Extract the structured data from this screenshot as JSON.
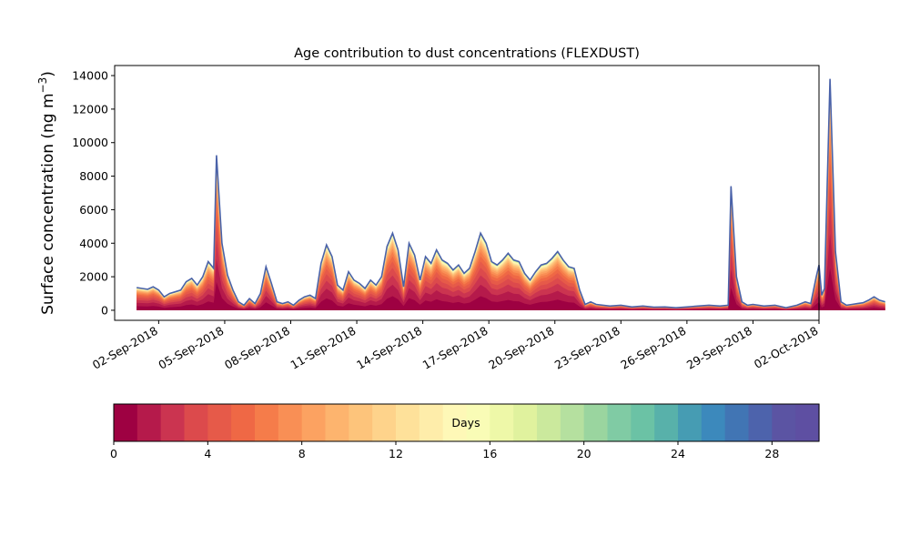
{
  "chart_data": {
    "type": "area",
    "title": "Age contribution to dust concentrations (FLEXDUST)",
    "ylabel": "Surface concentration (ng m",
    "ylabel_sup": "−3",
    "ylabel_close": ")",
    "ylim": [
      -600,
      14600
    ],
    "y_ticks": [
      0,
      2000,
      4000,
      6000,
      8000,
      10000,
      12000,
      14000
    ],
    "x_start": "2018-08-31",
    "x_end": "2018-10-02",
    "x_ticks": [
      "02-Sep-2018",
      "05-Sep-2018",
      "08-Sep-2018",
      "11-Sep-2018",
      "14-Sep-2018",
      "17-Sep-2018",
      "20-Sep-2018",
      "23-Sep-2018",
      "26-Sep-2018",
      "29-Sep-2018",
      "02-Oct-2018"
    ],
    "series": [
      {
        "values": [
          [
            "2018-09-01 00:00",
            1350
          ],
          [
            "2018-09-01 06:00",
            1300
          ],
          [
            "2018-09-01 12:00",
            1250
          ],
          [
            "2018-09-01 18:00",
            1400
          ],
          [
            "2018-09-02 00:00",
            1200
          ],
          [
            "2018-09-02 06:00",
            800
          ],
          [
            "2018-09-02 12:00",
            1000
          ],
          [
            "2018-09-02 18:00",
            1100
          ],
          [
            "2018-09-03 00:00",
            1200
          ],
          [
            "2018-09-03 06:00",
            1700
          ],
          [
            "2018-09-03 12:00",
            1900
          ],
          [
            "2018-09-03 18:00",
            1500
          ],
          [
            "2018-09-04 00:00",
            2000
          ],
          [
            "2018-09-04 06:00",
            2900
          ],
          [
            "2018-09-04 12:00",
            2500
          ],
          [
            "2018-09-04 15:00",
            9250
          ],
          [
            "2018-09-04 21:00",
            4000
          ],
          [
            "2018-09-05 03:00",
            2100
          ],
          [
            "2018-09-05 09:00",
            1200
          ],
          [
            "2018-09-05 15:00",
            500
          ],
          [
            "2018-09-05 21:00",
            300
          ],
          [
            "2018-09-06 03:00",
            700
          ],
          [
            "2018-09-06 09:00",
            400
          ],
          [
            "2018-09-06 15:00",
            1000
          ],
          [
            "2018-09-06 21:00",
            2600
          ],
          [
            "2018-09-07 03:00",
            1600
          ],
          [
            "2018-09-07 09:00",
            500
          ],
          [
            "2018-09-07 15:00",
            400
          ],
          [
            "2018-09-07 21:00",
            500
          ],
          [
            "2018-09-08 03:00",
            300
          ],
          [
            "2018-09-08 09:00",
            600
          ],
          [
            "2018-09-08 15:00",
            800
          ],
          [
            "2018-09-08 21:00",
            900
          ],
          [
            "2018-09-09 03:00",
            700
          ],
          [
            "2018-09-09 09:00",
            2800
          ],
          [
            "2018-09-09 15:00",
            3900
          ],
          [
            "2018-09-09 21:00",
            3200
          ],
          [
            "2018-09-10 03:00",
            1500
          ],
          [
            "2018-09-10 09:00",
            1200
          ],
          [
            "2018-09-10 15:00",
            2300
          ],
          [
            "2018-09-10 21:00",
            1800
          ],
          [
            "2018-09-11 03:00",
            1600
          ],
          [
            "2018-09-11 09:00",
            1300
          ],
          [
            "2018-09-11 15:00",
            1800
          ],
          [
            "2018-09-11 21:00",
            1500
          ],
          [
            "2018-09-12 03:00",
            2000
          ],
          [
            "2018-09-12 09:00",
            3800
          ],
          [
            "2018-09-12 15:00",
            4600
          ],
          [
            "2018-09-12 21:00",
            3600
          ],
          [
            "2018-09-13 03:00",
            1400
          ],
          [
            "2018-09-13 09:00",
            4000
          ],
          [
            "2018-09-13 15:00",
            3300
          ],
          [
            "2018-09-13 21:00",
            1800
          ],
          [
            "2018-09-14 03:00",
            3200
          ],
          [
            "2018-09-14 09:00",
            2800
          ],
          [
            "2018-09-14 15:00",
            3600
          ],
          [
            "2018-09-14 21:00",
            3000
          ],
          [
            "2018-09-15 03:00",
            2800
          ],
          [
            "2018-09-15 09:00",
            2400
          ],
          [
            "2018-09-15 15:00",
            2700
          ],
          [
            "2018-09-15 21:00",
            2200
          ],
          [
            "2018-09-16 03:00",
            2500
          ],
          [
            "2018-09-16 09:00",
            3500
          ],
          [
            "2018-09-16 15:00",
            4600
          ],
          [
            "2018-09-16 21:00",
            4000
          ],
          [
            "2018-09-17 03:00",
            2900
          ],
          [
            "2018-09-17 09:00",
            2700
          ],
          [
            "2018-09-17 15:00",
            3000
          ],
          [
            "2018-09-17 21:00",
            3400
          ],
          [
            "2018-09-18 03:00",
            3000
          ],
          [
            "2018-09-18 09:00",
            2900
          ],
          [
            "2018-09-18 15:00",
            2200
          ],
          [
            "2018-09-18 21:00",
            1800
          ],
          [
            "2018-09-19 03:00",
            2300
          ],
          [
            "2018-09-19 09:00",
            2700
          ],
          [
            "2018-09-19 15:00",
            2800
          ],
          [
            "2018-09-19 21:00",
            3100
          ],
          [
            "2018-09-20 03:00",
            3500
          ],
          [
            "2018-09-20 09:00",
            3000
          ],
          [
            "2018-09-20 15:00",
            2600
          ],
          [
            "2018-09-20 21:00",
            2500
          ],
          [
            "2018-09-21 03:00",
            1200
          ],
          [
            "2018-09-21 09:00",
            350
          ],
          [
            "2018-09-21 15:00",
            500
          ],
          [
            "2018-09-21 21:00",
            350
          ],
          [
            "2018-09-22 12:00",
            250
          ],
          [
            "2018-09-23 00:00",
            300
          ],
          [
            "2018-09-23 12:00",
            200
          ],
          [
            "2018-09-24 00:00",
            250
          ],
          [
            "2018-09-24 12:00",
            180
          ],
          [
            "2018-09-25 00:00",
            200
          ],
          [
            "2018-09-25 12:00",
            150
          ],
          [
            "2018-09-26 00:00",
            200
          ],
          [
            "2018-09-26 12:00",
            250
          ],
          [
            "2018-09-27 00:00",
            300
          ],
          [
            "2018-09-27 12:00",
            250
          ],
          [
            "2018-09-27 21:00",
            300
          ],
          [
            "2018-09-28 00:00",
            7400
          ],
          [
            "2018-09-28 06:00",
            2000
          ],
          [
            "2018-09-28 12:00",
            500
          ],
          [
            "2018-09-28 18:00",
            300
          ],
          [
            "2018-09-29 00:00",
            350
          ],
          [
            "2018-09-29 12:00",
            250
          ],
          [
            "2018-09-30 00:00",
            300
          ],
          [
            "2018-09-30 12:00",
            150
          ],
          [
            "2018-10-01 00:00",
            300
          ],
          [
            "2018-10-01 09:00",
            500
          ],
          [
            "2018-10-01 15:00",
            400
          ],
          [
            "2018-10-01 21:00",
            2000
          ],
          [
            "2018-10-02 00:00",
            2700
          ],
          [
            "2018-10-02 03:00",
            900
          ],
          [
            "2018-10-02 06:00",
            1300
          ],
          [
            "2018-10-02 12:00",
            13800
          ],
          [
            "2018-10-02 18:00",
            3500
          ],
          [
            "2018-10-03 00:00",
            500
          ],
          [
            "2018-10-03 06:00",
            300
          ],
          [
            "2018-10-03 12:00",
            350
          ],
          [
            "2018-10-03 18:00",
            400
          ],
          [
            "2018-10-04 00:00",
            450
          ],
          [
            "2018-10-04 06:00",
            600
          ],
          [
            "2018-10-04 12:00",
            800
          ],
          [
            "2018-10-04 18:00",
            600
          ],
          [
            "2018-10-05 00:00",
            500
          ]
        ]
      }
    ],
    "colorbar": {
      "label": "Days",
      "range": [
        0,
        30
      ],
      "ticks": [
        0,
        4,
        8,
        12,
        16,
        20,
        24,
        28
      ],
      "colors": [
        "#9e0142",
        "#b51a4b",
        "#cb3450",
        "#dc4a4c",
        "#e65a49",
        "#ef6845",
        "#f57c4a",
        "#f98f55",
        "#fca261",
        "#fdb46e",
        "#fdc47b",
        "#fed38b",
        "#fee19a",
        "#feedaa",
        "#fef8b7",
        "#f9fcb6",
        "#eef8a8",
        "#e0f29e",
        "#cbe99d",
        "#b5e09f",
        "#9ad59f",
        "#80cba4",
        "#6bc2a5",
        "#58b1aa",
        "#469cb3",
        "#3c89bc",
        "#4175b4",
        "#4d63ac",
        "#5b54a3",
        "#5e4fa2"
      ]
    }
  }
}
